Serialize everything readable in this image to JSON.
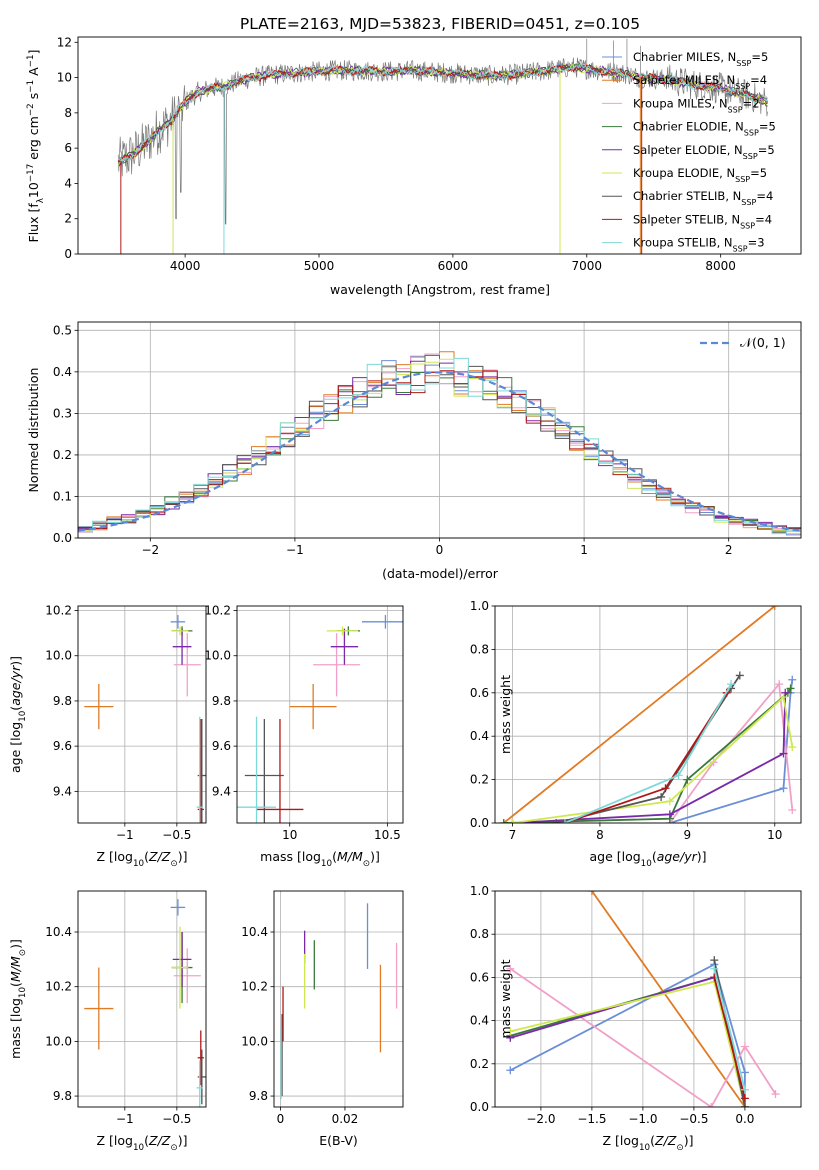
{
  "figure_title": "PLATE=2163, MJD=53823, FIBERID=0451, z=0.105",
  "colors": {
    "Chabrier MILES": "#6a8fd8",
    "Salpeter MILES": "#e07b24",
    "Kroupa MILES": "#f2a0c8",
    "Chabrier ELODIE": "#3a7a3a",
    "Salpeter ELODIE": "#7a2aa8",
    "Kroupa ELODIE": "#cfe850",
    "Chabrier STELIB": "#555555",
    "Salpeter STELIB": "#b01818",
    "Kroupa STELIB": "#7fd8d8",
    "data": "#7a7a7a"
  },
  "chart_data": [
    {
      "id": "spectrum",
      "type": "line",
      "title": "PLATE=2163, MJD=53823, FIBERID=0451, z=0.105",
      "xlabel": "wavelength [Angstrom, rest frame]",
      "ylabel": "Flux [f_λ 10^-17 erg cm^-2 s^-1 A^-1]",
      "xlim": [
        3200,
        8600
      ],
      "ylim": [
        0,
        12.3
      ],
      "xticks": [
        4000,
        5000,
        6000,
        7000,
        8000
      ],
      "yticks": [
        0,
        2,
        4,
        6,
        8,
        10,
        12
      ],
      "grid": false,
      "legend_position": "right",
      "legend": [
        {
          "name": "Chabrier MILES",
          "nssp": "5"
        },
        {
          "name": "Salpeter MILES",
          "nssp": "4"
        },
        {
          "name": "Kroupa MILES",
          "nssp": "2"
        },
        {
          "name": "Chabrier ELODIE",
          "nssp": "5"
        },
        {
          "name": "Salpeter ELODIE",
          "nssp": "5"
        },
        {
          "name": "Kroupa ELODIE",
          "nssp": "5"
        },
        {
          "name": "Chabrier STELIB",
          "nssp": "4"
        },
        {
          "name": "Salpeter STELIB",
          "nssp": "4"
        },
        {
          "name": "Kroupa STELIB",
          "nssp": "3"
        }
      ],
      "continuum": [
        [
          3500,
          5.2
        ],
        [
          3600,
          5.6
        ],
        [
          3700,
          6.2
        ],
        [
          3800,
          7.0
        ],
        [
          3900,
          7.6
        ],
        [
          4000,
          8.6
        ],
        [
          4100,
          9.2
        ],
        [
          4200,
          9.4
        ],
        [
          4300,
          9.5
        ],
        [
          4400,
          9.8
        ],
        [
          4500,
          10.0
        ],
        [
          4700,
          10.2
        ],
        [
          4900,
          10.3
        ],
        [
          5100,
          10.4
        ],
        [
          5300,
          10.4
        ],
        [
          5500,
          10.35
        ],
        [
          5700,
          10.4
        ],
        [
          5900,
          10.3
        ],
        [
          6100,
          10.2
        ],
        [
          6300,
          10.1
        ],
        [
          6500,
          10.2
        ],
        [
          6700,
          10.4
        ],
        [
          6900,
          10.6
        ],
        [
          7100,
          10.4
        ],
        [
          7300,
          10.2
        ],
        [
          7400,
          10.0
        ],
        [
          7600,
          9.9
        ],
        [
          7800,
          9.6
        ],
        [
          8000,
          9.4
        ],
        [
          8200,
          9.0
        ],
        [
          8350,
          8.6
        ]
      ],
      "absorption_lines": [
        [
          3934,
          0.5
        ],
        [
          3969,
          2.0
        ],
        [
          4102,
          7.5
        ],
        [
          4304,
          0.2
        ],
        [
          4862,
          8.5
        ],
        [
          5175,
          9.0
        ],
        [
          5892,
          9.4
        ],
        [
          6563,
          9.8
        ],
        [
          6800,
          0.0
        ],
        [
          7400,
          0.2
        ]
      ],
      "data_spikes": [
        [
          7000,
          12.2
        ],
        [
          7200,
          12.1
        ],
        [
          7300,
          12.2
        ],
        [
          7400,
          11.8
        ]
      ]
    },
    {
      "id": "residuals",
      "type": "histogram",
      "xlabel": "(data-model)/error",
      "ylabel": "Normed distribution",
      "xlim": [
        -2.5,
        2.5
      ],
      "ylim": [
        0,
        0.52
      ],
      "xticks": [
        -2,
        -1,
        0,
        1,
        2
      ],
      "yticks": [
        0.0,
        0.1,
        0.2,
        0.3,
        0.4,
        0.5
      ],
      "grid": true,
      "legend_position": "top-right",
      "legend_label": "𝒩(0, 1)",
      "bin_width": 0.1,
      "bin_start": -2.5
    },
    {
      "id": "age-vs-Z",
      "type": "errorbar",
      "xlabel": "Z [log10(Z/Z⊙)]",
      "ylabel": "age [log10(age/yr)]",
      "xlim": [
        -1.45,
        -0.22
      ],
      "ylim": [
        9.26,
        10.22
      ],
      "xticks": [
        -1.0,
        -0.5
      ],
      "yticks": [
        9.4,
        9.6,
        9.8,
        10.0,
        10.2
      ],
      "grid": true,
      "points": [
        {
          "series": "Chabrier MILES",
          "x": -0.49,
          "y": 10.15,
          "xerr": 0.07,
          "yerr": 0.03
        },
        {
          "series": "Salpeter MILES",
          "x": -1.25,
          "y": 9.775,
          "xerr": 0.14,
          "yerr": 0.1
        },
        {
          "series": "Kroupa MILES",
          "x": -0.4,
          "y": 9.96,
          "xerr": 0.13,
          "yerr": 0.14
        },
        {
          "series": "Chabrier ELODIE",
          "x": -0.45,
          "y": 10.11,
          "xerr": 0.1,
          "yerr": 0.02
        },
        {
          "series": "Salpeter ELODIE",
          "x": -0.45,
          "y": 10.04,
          "xerr": 0.09,
          "yerr": 0.08
        },
        {
          "series": "Kroupa ELODIE",
          "x": -0.47,
          "y": 10.11,
          "xerr": 0.08,
          "yerr": 0.02
        },
        {
          "series": "Chabrier STELIB",
          "x": -0.26,
          "y": 9.47,
          "xerr": 0.04,
          "yerr": 0.25
        },
        {
          "series": "Salpeter STELIB",
          "x": -0.27,
          "y": 9.32,
          "xerr": 0.03,
          "yerr": 0.4
        },
        {
          "series": "Kroupa STELIB",
          "x": -0.28,
          "y": 9.33,
          "xerr": 0.03,
          "yerr": 0.4
        }
      ]
    },
    {
      "id": "age-vs-mass",
      "type": "errorbar",
      "xlabel": "mass [log10(M/M⊙)]",
      "ylabel": "",
      "xlim": [
        9.73,
        10.58
      ],
      "ylim": [
        9.26,
        10.22
      ],
      "xticks": [
        10.0,
        10.5
      ],
      "yticks": [
        9.4,
        9.6,
        9.8,
        10.0,
        10.2
      ],
      "grid": true,
      "points": [
        {
          "series": "Chabrier MILES",
          "x": 10.49,
          "y": 10.15,
          "xerr": 0.12,
          "yerr": 0.03
        },
        {
          "series": "Salpeter MILES",
          "x": 10.12,
          "y": 9.775,
          "xerr": 0.12,
          "yerr": 0.1
        },
        {
          "series": "Kroupa MILES",
          "x": 10.24,
          "y": 9.96,
          "xerr": 0.12,
          "yerr": 0.14
        },
        {
          "series": "Chabrier ELODIE",
          "x": 10.3,
          "y": 10.11,
          "xerr": 0.06,
          "yerr": 0.02
        },
        {
          "series": "Salpeter ELODIE",
          "x": 10.28,
          "y": 10.04,
          "xerr": 0.07,
          "yerr": 0.08
        },
        {
          "series": "Kroupa ELODIE",
          "x": 10.27,
          "y": 10.11,
          "xerr": 0.08,
          "yerr": 0.02
        },
        {
          "series": "Chabrier STELIB",
          "x": 9.87,
          "y": 9.47,
          "xerr": 0.1,
          "yerr": 0.25
        },
        {
          "series": "Salpeter STELIB",
          "x": 9.95,
          "y": 9.32,
          "xerr": 0.12,
          "yerr": 0.4
        },
        {
          "series": "Kroupa STELIB",
          "x": 9.83,
          "y": 9.33,
          "xerr": 0.1,
          "yerr": 0.4
        }
      ]
    },
    {
      "id": "cumulative-mass-weight-vs-age",
      "type": "line",
      "xlabel": "age [log10(age/yr)]",
      "ylabel": "mass weight",
      "xlim": [
        6.8,
        10.3
      ],
      "ylim": [
        0,
        1.0
      ],
      "xticks": [
        7,
        8,
        9,
        10
      ],
      "yticks": [
        0.0,
        0.2,
        0.4,
        0.6,
        0.8,
        1.0
      ],
      "grid": true,
      "series": [
        {
          "name": "Chabrier MILES",
          "x": [
            8.8,
            10.1,
            10.18,
            10.2
          ],
          "y": [
            0.0,
            0.16,
            0.6,
            0.66
          ]
        },
        {
          "name": "Salpeter MILES",
          "x": [
            6.9,
            10.0
          ],
          "y": [
            0.0,
            1.0
          ]
        },
        {
          "name": "Kroupa MILES",
          "x": [
            8.8,
            9.3,
            10.05,
            10.2
          ],
          "y": [
            0.0,
            0.28,
            0.64,
            0.06
          ]
        },
        {
          "name": "Chabrier ELODIE",
          "x": [
            6.9,
            8.8,
            9.0,
            10.15,
            10.18
          ],
          "y": [
            0.0,
            0.02,
            0.2,
            0.6,
            0.62
          ]
        },
        {
          "name": "Salpeter ELODIE",
          "x": [
            7.0,
            8.8,
            10.1,
            10.12
          ],
          "y": [
            0.0,
            0.04,
            0.32,
            0.6
          ]
        },
        {
          "name": "Kroupa ELODIE",
          "x": [
            7.0,
            8.8,
            10.1,
            10.2
          ],
          "y": [
            0.0,
            0.1,
            0.58,
            0.35
          ]
        },
        {
          "name": "Chabrier STELIB",
          "x": [
            7.5,
            8.7,
            9.5,
            9.6
          ],
          "y": [
            0.0,
            0.12,
            0.62,
            0.68
          ]
        },
        {
          "name": "Salpeter STELIB",
          "x": [
            7.6,
            8.75,
            9.45
          ],
          "y": [
            0.0,
            0.16,
            0.6
          ]
        },
        {
          "name": "Kroupa STELIB",
          "x": [
            7.6,
            8.9,
            9.5
          ],
          "y": [
            0.0,
            0.22,
            0.64
          ]
        }
      ]
    },
    {
      "id": "mass-vs-Z",
      "type": "errorbar",
      "xlabel": "Z [log10(Z/Z⊙)]",
      "ylabel": "mass [log10(M/M⊙)]",
      "xlim": [
        -1.45,
        -0.22
      ],
      "ylim": [
        9.76,
        10.55
      ],
      "xticks": [
        -1.0,
        -0.5
      ],
      "yticks": [
        9.8,
        10.0,
        10.2,
        10.4
      ],
      "grid": true,
      "points": [
        {
          "series": "Chabrier MILES",
          "x": -0.49,
          "y": 10.49,
          "xerr": 0.07,
          "yerr": 0.03
        },
        {
          "series": "Salpeter MILES",
          "x": -1.25,
          "y": 10.12,
          "xerr": 0.14,
          "yerr": 0.15
        },
        {
          "series": "Kroupa MILES",
          "x": -0.4,
          "y": 10.24,
          "xerr": 0.13,
          "yerr": 0.1
        },
        {
          "series": "Chabrier ELODIE",
          "x": -0.45,
          "y": 10.27,
          "xerr": 0.1,
          "yerr": 0.13
        },
        {
          "series": "Salpeter ELODIE",
          "x": -0.45,
          "y": 10.3,
          "xerr": 0.09,
          "yerr": 0.1
        },
        {
          "series": "Kroupa ELODIE",
          "x": -0.47,
          "y": 10.27,
          "xerr": 0.08,
          "yerr": 0.15
        },
        {
          "series": "Chabrier STELIB",
          "x": -0.26,
          "y": 9.87,
          "xerr": 0.04,
          "yerr": 0.1
        },
        {
          "series": "Salpeter STELIB",
          "x": -0.27,
          "y": 9.94,
          "xerr": 0.03,
          "yerr": 0.1
        },
        {
          "series": "Kroupa STELIB",
          "x": -0.28,
          "y": 9.83,
          "xerr": 0.03,
          "yerr": 0.1
        }
      ]
    },
    {
      "id": "mass-vs-ebv",
      "type": "errorbar",
      "xlabel": "E(B-V)",
      "ylabel": "",
      "xlim": [
        -0.002,
        0.038
      ],
      "ylim": [
        9.76,
        10.55
      ],
      "xticks": [
        0.0,
        0.02
      ],
      "yticks": [
        9.8,
        10.0,
        10.2,
        10.4
      ],
      "grid": true,
      "points": [
        {
          "series": "Chabrier MILES",
          "x": 0.027,
          "y": 10.385,
          "xerr": 0,
          "yerr": 0.12
        },
        {
          "series": "Salpeter MILES",
          "x": 0.031,
          "y": 10.12,
          "xerr": 0,
          "yerr": 0.16
        },
        {
          "series": "Kroupa MILES",
          "x": 0.036,
          "y": 10.24,
          "xerr": 0,
          "yerr": 0.12
        },
        {
          "series": "Chabrier ELODIE",
          "x": 0.0105,
          "y": 10.28,
          "xerr": 0,
          "yerr": 0.09
        },
        {
          "series": "Salpeter ELODIE",
          "x": 0.0075,
          "y": 10.345,
          "xerr": 0,
          "yerr": 0.06
        },
        {
          "series": "Kroupa ELODIE",
          "x": 0.0075,
          "y": 10.22,
          "xerr": 0,
          "yerr": 0.1
        },
        {
          "series": "Chabrier STELIB",
          "x": 0.0005,
          "y": 9.95,
          "xerr": 0,
          "yerr": 0.15
        },
        {
          "series": "Salpeter STELIB",
          "x": 0.0008,
          "y": 10.1,
          "xerr": 0,
          "yerr": 0.1
        },
        {
          "series": "Kroupa STELIB",
          "x": 0.0002,
          "y": 9.92,
          "xerr": 0,
          "yerr": 0.13
        }
      ]
    },
    {
      "id": "cumulative-mass-weight-vs-Z",
      "type": "line",
      "xlabel": "Z [log10(Z/Z⊙)]",
      "ylabel": "mass weight",
      "xlim": [
        -2.45,
        0.55
      ],
      "ylim": [
        0,
        1.0
      ],
      "xticks": [
        -2.0,
        -1.5,
        -1.0,
        -0.5,
        0.0
      ],
      "yticks": [
        0.0,
        0.2,
        0.4,
        0.6,
        0.8,
        1.0
      ],
      "grid": true,
      "series": [
        {
          "name": "Chabrier MILES",
          "x": [
            -2.3,
            -0.3,
            0.0,
            0.0
          ],
          "y": [
            0.17,
            0.66,
            0.16,
            0.0
          ]
        },
        {
          "name": "Salpeter MILES",
          "x": [
            -1.5,
            0.0
          ],
          "y": [
            1.0,
            0.0
          ]
        },
        {
          "name": "Kroupa MILES",
          "x": [
            -2.3,
            -0.33,
            0.0,
            0.3
          ],
          "y": [
            0.64,
            0.0,
            0.28,
            0.06
          ]
        },
        {
          "name": "Chabrier ELODIE",
          "x": [
            -2.3,
            -0.3,
            0.0
          ],
          "y": [
            0.33,
            0.6,
            0.0
          ]
        },
        {
          "name": "Salpeter ELODIE",
          "x": [
            -2.3,
            -0.3,
            0.0
          ],
          "y": [
            0.32,
            0.6,
            0.0
          ]
        },
        {
          "name": "Kroupa ELODIE",
          "x": [
            -2.3,
            -0.3,
            0.0
          ],
          "y": [
            0.35,
            0.58,
            0.0
          ]
        },
        {
          "name": "Chabrier STELIB",
          "x": [
            -0.3,
            0.0
          ],
          "y": [
            0.68,
            0.0
          ]
        },
        {
          "name": "Salpeter STELIB",
          "x": [
            -0.3,
            0.0
          ],
          "y": [
            0.6,
            0.04
          ]
        },
        {
          "name": "Kroupa STELIB",
          "x": [
            -0.3,
            0.0
          ],
          "y": [
            0.64,
            0.08
          ]
        }
      ]
    }
  ]
}
